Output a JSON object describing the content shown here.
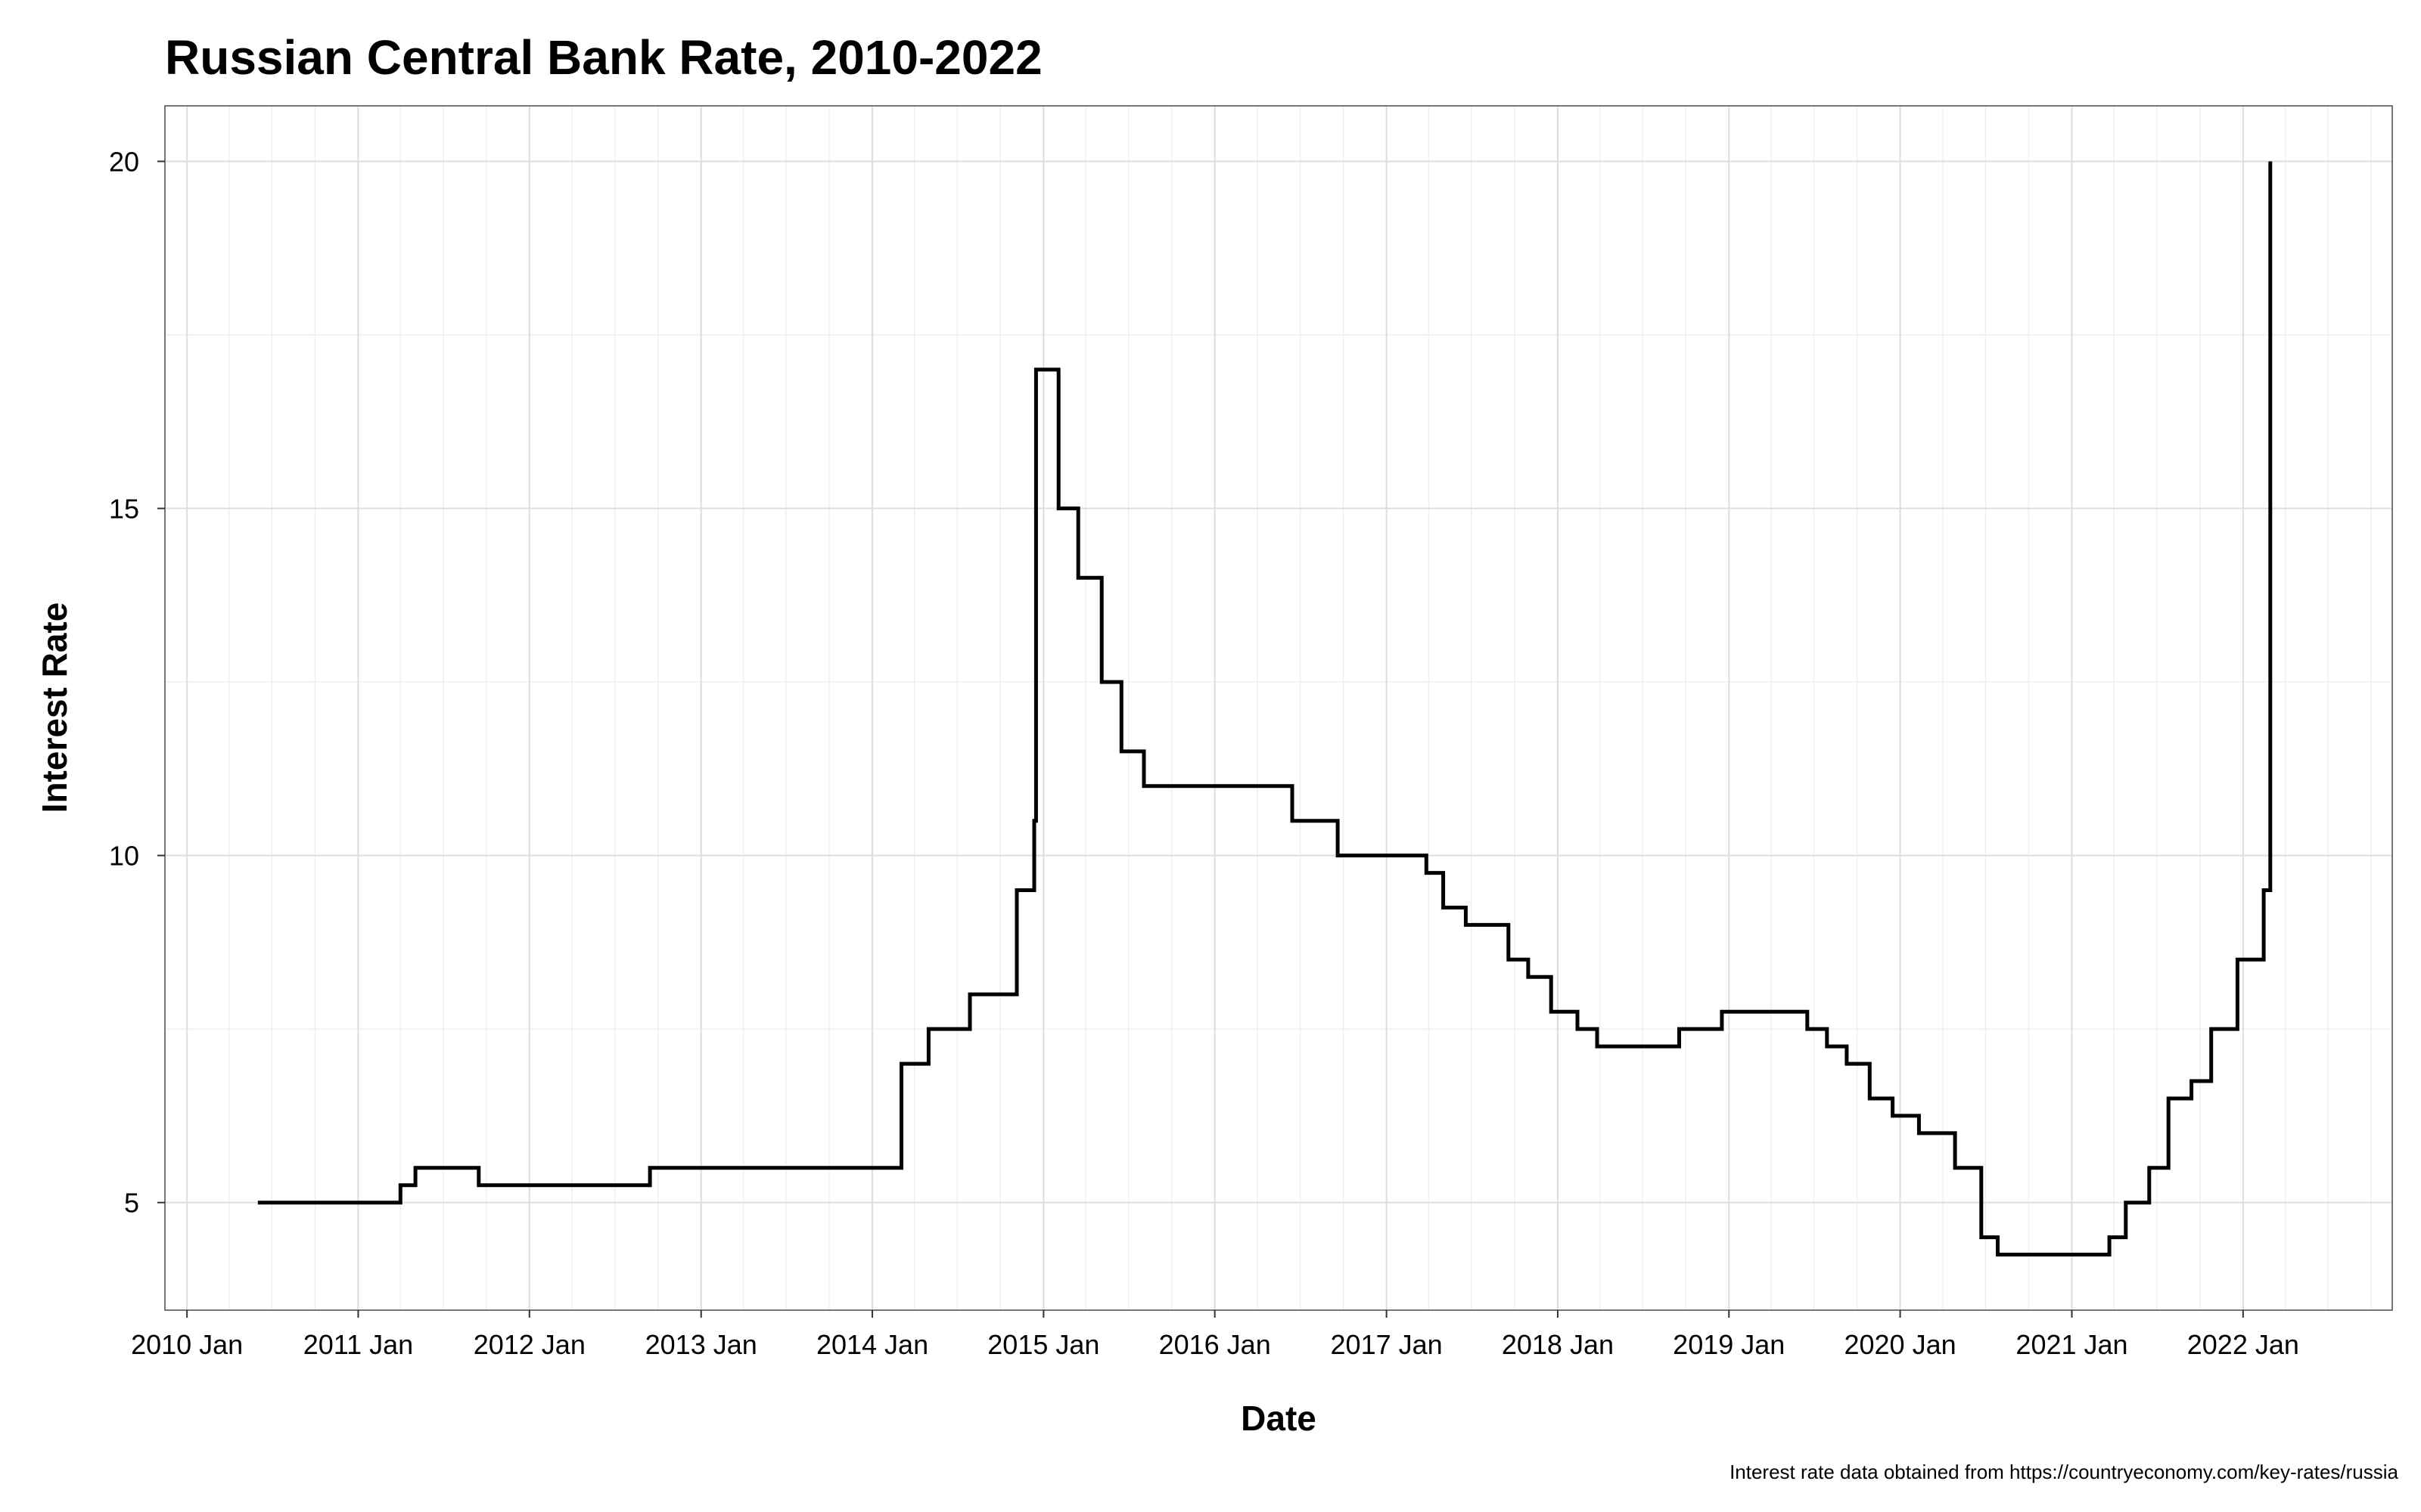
{
  "chart_data": {
    "type": "line",
    "step": "hv",
    "title": "Russian Central Bank Rate, 2010-2022",
    "xlabel": "Date",
    "ylabel": "Interest Rate",
    "caption": "Interest rate data obtained from https://countryeconomy.com/key-rates/russia",
    "x_ticks": [
      "2010 Jan",
      "2011 Jan",
      "2012 Jan",
      "2013 Jan",
      "2014 Jan",
      "2015 Jan",
      "2016 Jan",
      "2017 Jan",
      "2018 Jan",
      "2019 Jan",
      "2020 Jan",
      "2021 Jan",
      "2022 Jan"
    ],
    "x_tick_dates": [
      "2010-01-01",
      "2011-01-01",
      "2012-01-01",
      "2013-01-01",
      "2014-01-01",
      "2015-01-01",
      "2016-01-01",
      "2017-01-01",
      "2018-01-01",
      "2019-01-01",
      "2020-01-01",
      "2021-01-01",
      "2022-01-01"
    ],
    "y_ticks": [
      5,
      10,
      15,
      20
    ],
    "xlim": [
      "2009-11-15",
      "2022-11-15"
    ],
    "ylim": [
      3.45,
      20.8
    ],
    "grid": true,
    "series": [
      {
        "color": "#000000",
        "x": [
          "2010-06-01",
          "2011-04-01",
          "2011-05-03",
          "2011-09-15",
          "2012-09-14",
          "2014-03-03",
          "2014-03-04",
          "2014-05-01",
          "2014-07-28",
          "2014-11-05",
          "2014-12-12",
          "2014-12-16",
          "2015-02-02",
          "2015-03-16",
          "2015-05-05",
          "2015-06-16",
          "2015-08-03",
          "2016-06-14",
          "2016-09-19",
          "2017-03-27",
          "2017-05-02",
          "2017-06-19",
          "2017-09-18",
          "2017-10-30",
          "2017-12-18",
          "2018-02-12",
          "2018-03-26",
          "2018-09-17",
          "2018-12-17",
          "2019-06-17",
          "2019-07-29",
          "2019-09-09",
          "2019-10-28",
          "2019-12-16",
          "2020-02-10",
          "2020-04-27",
          "2020-06-22",
          "2020-07-27",
          "2021-03-22",
          "2021-04-26",
          "2021-06-15",
          "2021-07-26",
          "2021-09-13",
          "2021-10-25",
          "2021-12-20",
          "2022-02-14",
          "2022-02-28"
        ],
        "y": [
          5.0,
          5.25,
          5.5,
          5.25,
          5.5,
          5.5,
          7.0,
          7.5,
          8.0,
          9.5,
          10.5,
          17.0,
          15.0,
          14.0,
          12.5,
          11.5,
          11.0,
          10.5,
          10.0,
          9.75,
          9.25,
          9.0,
          8.5,
          8.25,
          7.75,
          7.5,
          7.25,
          7.5,
          7.75,
          7.5,
          7.25,
          7.0,
          6.5,
          6.25,
          6.0,
          5.5,
          4.5,
          4.25,
          4.5,
          5.0,
          5.5,
          6.5,
          6.75,
          7.5,
          8.5,
          9.5,
          20.0
        ],
        "end_x": "2022-02-28"
      }
    ]
  }
}
